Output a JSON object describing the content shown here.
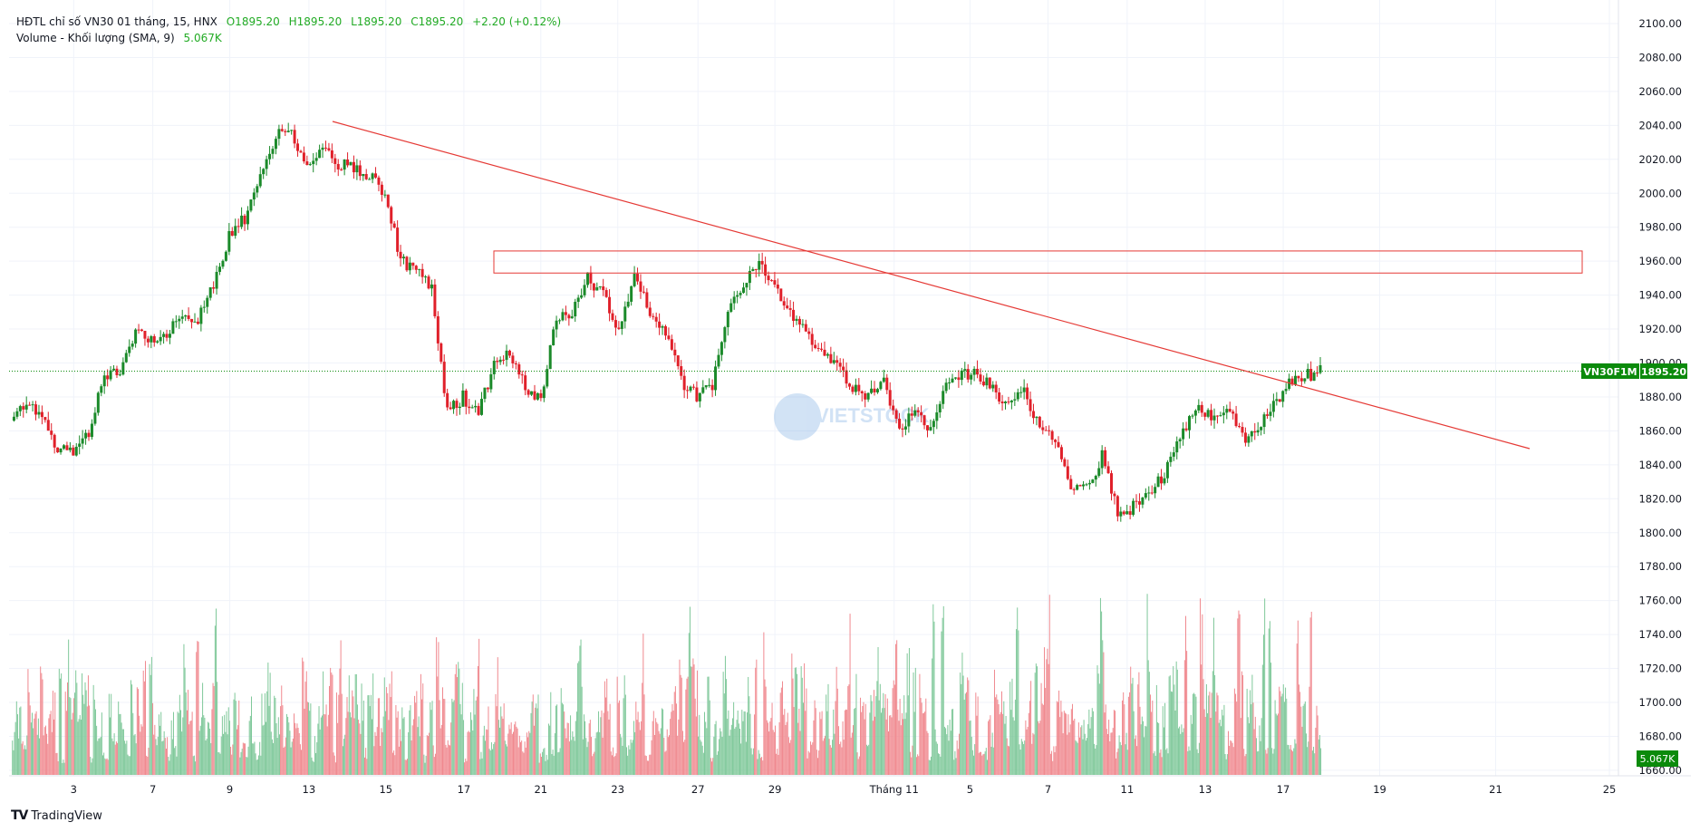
{
  "legend": {
    "title": "HĐTL chỉ số VN30 01 tháng, 15, HNX",
    "open": "O1895.20",
    "high": "H1895.20",
    "low": "L1895.20",
    "close": "C1895.20",
    "change": "+2.20 (+0.12%)",
    "volume_label": "Volume - Khối lượng (SMA, 9)",
    "volume_value": "5.067K"
  },
  "price_badge": {
    "symbol": "VN30F1M",
    "price": "1895.20"
  },
  "volume_badge": "5.067K",
  "branding": "TradingView",
  "watermark": "VIETSTOCK",
  "colors": {
    "up": "#089981",
    "down": "#f23645",
    "candle_up": "#1b8a2a",
    "candle_down": "#e0202a",
    "badge": "#0b8a0b",
    "drawing": "#e53935"
  },
  "chart_data": {
    "type": "candlestick",
    "timeframe": "15",
    "y_ticks": [
      "2100.00",
      "2080.00",
      "2060.00",
      "2040.00",
      "2020.00",
      "2000.00",
      "1980.00",
      "1960.00",
      "1940.00",
      "1920.00",
      "1900.00",
      "1880.00",
      "1860.00",
      "1840.00",
      "1820.00",
      "1800.00",
      "1780.00",
      "1760.00",
      "1740.00",
      "1720.00",
      "1700.00",
      "1680.00",
      "1660.00"
    ],
    "ylim": [
      1660,
      2100
    ],
    "x_ticks": [
      "3",
      "7",
      "9",
      "13",
      "15",
      "17",
      "21",
      "23",
      "27",
      "29",
      "Tháng 11",
      "5",
      "7",
      "11",
      "13",
      "17",
      "19",
      "21",
      "25"
    ],
    "grid": true,
    "last_price": 1895.2,
    "closes": [
      1866,
      1878,
      1870,
      1850,
      1848,
      1860,
      1893,
      1895,
      1920,
      1915,
      1918,
      1930,
      1925,
      1945,
      1975,
      1985,
      2010,
      2035,
      2035,
      2015,
      2025,
      2018,
      2015,
      2010,
      2000,
      1960,
      1955,
      1945,
      1870,
      1880,
      1870,
      1900,
      1905,
      1885,
      1880,
      1925,
      1930,
      1950,
      1940,
      1920,
      1950,
      1930,
      1920,
      1890,
      1880,
      1885,
      1930,
      1945,
      1962,
      1945,
      1930,
      1920,
      1905,
      1900,
      1885,
      1880,
      1890,
      1860,
      1875,
      1860,
      1890,
      1895,
      1893,
      1885,
      1875,
      1885,
      1860,
      1855,
      1825,
      1825,
      1845,
      1812,
      1815,
      1825,
      1835,
      1855,
      1875,
      1870,
      1875,
      1855,
      1860,
      1875,
      1890,
      1892,
      1895.2
    ],
    "drawings": {
      "resistance_zone": [
        1953,
        1966
      ],
      "trendline": "descending"
    }
  }
}
